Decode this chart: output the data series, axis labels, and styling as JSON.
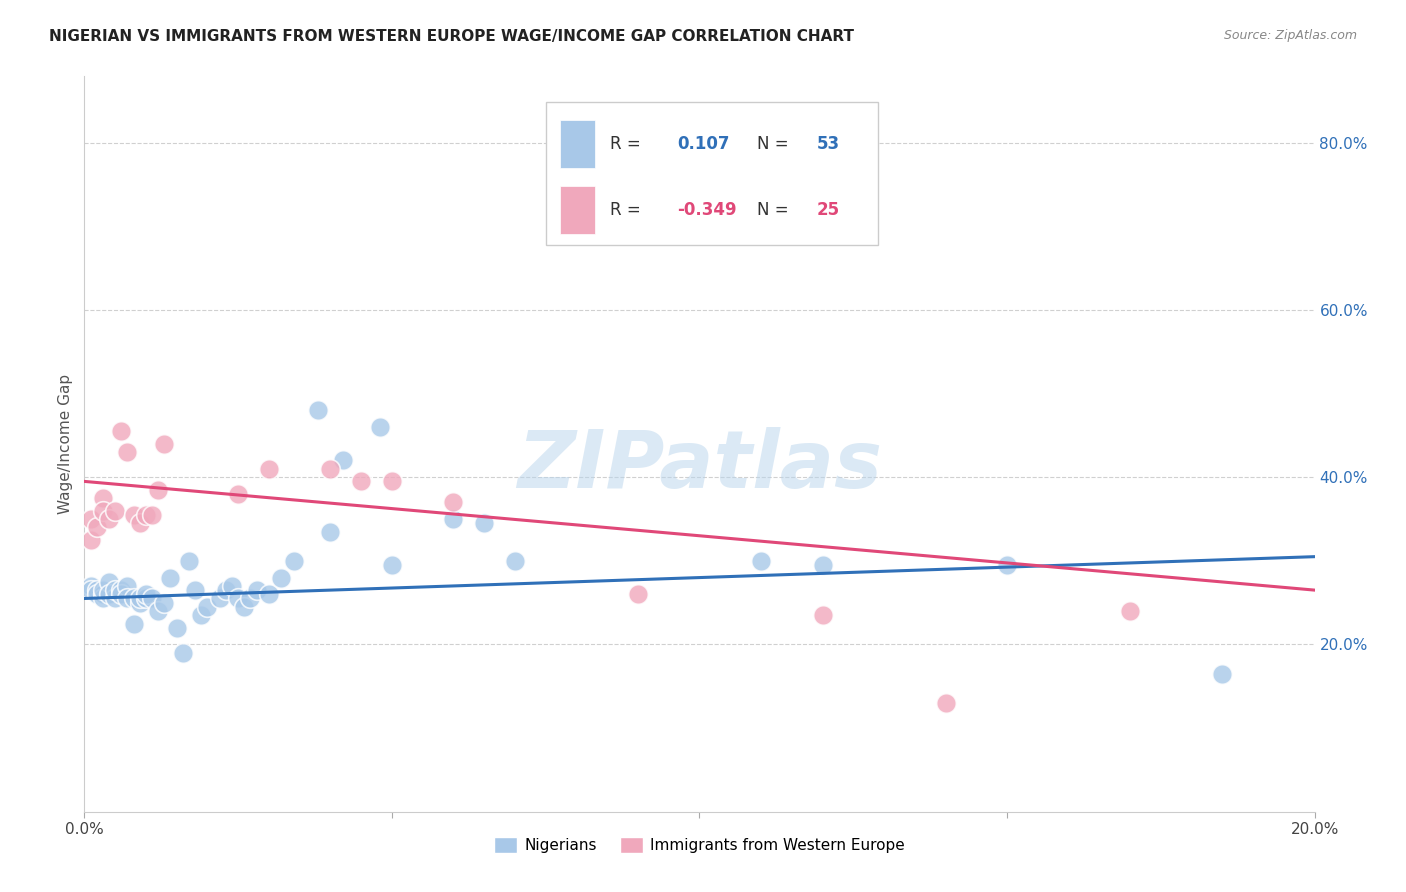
{
  "title": "NIGERIAN VS IMMIGRANTS FROM WESTERN EUROPE WAGE/INCOME GAP CORRELATION CHART",
  "source": "Source: ZipAtlas.com",
  "ylabel": "Wage/Income Gap",
  "xlabel": "",
  "xlim": [
    0.0,
    0.2
  ],
  "ylim": [
    0.0,
    0.88
  ],
  "yticks": [
    0.2,
    0.4,
    0.6,
    0.8
  ],
  "ytick_labels": [
    "20.0%",
    "40.0%",
    "60.0%",
    "80.0%"
  ],
  "blue_color": "#a8c8e8",
  "pink_color": "#f0a8bc",
  "blue_line_color": "#3070b8",
  "pink_line_color": "#e04878",
  "R_blue": 0.107,
  "N_blue": 53,
  "R_pink": -0.349,
  "N_pink": 25,
  "blue_points_x": [
    0.001,
    0.001,
    0.002,
    0.002,
    0.003,
    0.003,
    0.003,
    0.004,
    0.004,
    0.005,
    0.005,
    0.006,
    0.006,
    0.007,
    0.007,
    0.008,
    0.008,
    0.009,
    0.009,
    0.01,
    0.01,
    0.011,
    0.012,
    0.013,
    0.014,
    0.015,
    0.016,
    0.017,
    0.018,
    0.019,
    0.02,
    0.022,
    0.023,
    0.024,
    0.025,
    0.026,
    0.027,
    0.028,
    0.03,
    0.032,
    0.034,
    0.038,
    0.04,
    0.042,
    0.048,
    0.05,
    0.06,
    0.065,
    0.07,
    0.11,
    0.12,
    0.15,
    0.185
  ],
  "blue_points_y": [
    0.27,
    0.265,
    0.265,
    0.26,
    0.26,
    0.255,
    0.265,
    0.275,
    0.26,
    0.255,
    0.265,
    0.265,
    0.26,
    0.27,
    0.255,
    0.255,
    0.225,
    0.25,
    0.255,
    0.255,
    0.26,
    0.255,
    0.24,
    0.25,
    0.28,
    0.22,
    0.19,
    0.3,
    0.265,
    0.235,
    0.245,
    0.255,
    0.265,
    0.27,
    0.255,
    0.245,
    0.255,
    0.265,
    0.26,
    0.28,
    0.3,
    0.48,
    0.335,
    0.42,
    0.46,
    0.295,
    0.35,
    0.345,
    0.3,
    0.3,
    0.295,
    0.295,
    0.165
  ],
  "pink_points_x": [
    0.001,
    0.001,
    0.002,
    0.003,
    0.003,
    0.004,
    0.005,
    0.006,
    0.007,
    0.008,
    0.009,
    0.01,
    0.011,
    0.012,
    0.013,
    0.025,
    0.03,
    0.04,
    0.045,
    0.05,
    0.06,
    0.09,
    0.12,
    0.14,
    0.17
  ],
  "pink_points_y": [
    0.325,
    0.35,
    0.34,
    0.375,
    0.36,
    0.35,
    0.36,
    0.455,
    0.43,
    0.355,
    0.345,
    0.355,
    0.355,
    0.385,
    0.44,
    0.38,
    0.41,
    0.41,
    0.395,
    0.395,
    0.37,
    0.26,
    0.235,
    0.13,
    0.24
  ],
  "watermark": "ZIPatlas",
  "background_color": "#ffffff",
  "grid_color": "#d0d0d0"
}
